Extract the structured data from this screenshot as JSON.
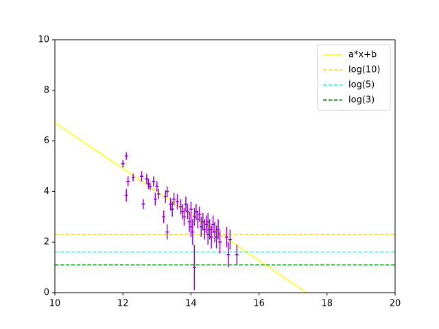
{
  "chart_data": {
    "type": "errorbar",
    "xlim": [
      10,
      20
    ],
    "xticks": [
      10,
      12,
      14,
      16,
      18,
      20
    ],
    "ylim": [
      0,
      10
    ],
    "yticks": [
      0,
      2,
      4,
      6,
      8,
      10
    ],
    "legend": "upper right",
    "series": [
      {
        "name": "a*x+b",
        "color": "#ffff00",
        "style": "solid",
        "x": [
          10,
          17.4
        ],
        "values": [
          6.72,
          0
        ]
      },
      {
        "name": "log(10)",
        "color": "#ffd700",
        "style": "dashed",
        "x": [
          10,
          20
        ],
        "values": [
          2.303,
          2.303
        ]
      },
      {
        "name": "log(5)",
        "color": "#00ffff",
        "style": "dashed",
        "x": [
          10,
          20
        ],
        "values": [
          1.609,
          1.609
        ]
      },
      {
        "name": "log(3)",
        "color": "#008000",
        "style": "dashed",
        "x": [
          10,
          20
        ],
        "values": [
          1.099,
          1.099
        ]
      }
    ],
    "points": {
      "color": "#9400d3",
      "xerr": 0.05,
      "x": [
        12.0,
        12.1,
        12.1,
        12.15,
        12.3,
        12.55,
        12.6,
        12.7,
        12.75,
        12.8,
        12.9,
        12.95,
        13.0,
        13.05,
        13.2,
        13.25,
        13.3,
        13.3,
        13.4,
        13.45,
        13.5,
        13.6,
        13.7,
        13.75,
        13.8,
        13.85,
        13.9,
        13.95,
        14.0,
        14.0,
        14.05,
        14.1,
        14.1,
        14.15,
        14.2,
        14.25,
        14.3,
        14.35,
        14.4,
        14.45,
        14.5,
        14.5,
        14.55,
        14.6,
        14.65,
        14.7,
        14.75,
        14.8,
        14.85,
        15.05,
        15.1,
        15.15,
        15.35
      ],
      "values": [
        5.1,
        5.4,
        3.85,
        4.4,
        4.55,
        4.6,
        3.5,
        4.5,
        4.3,
        4.2,
        4.4,
        3.7,
        4.2,
        3.9,
        3.0,
        3.8,
        2.4,
        4.0,
        3.5,
        3.3,
        3.7,
        3.6,
        3.4,
        3.2,
        3.0,
        3.5,
        3.2,
        2.8,
        3.3,
        2.6,
        2.4,
        1.0,
        3.0,
        3.2,
        2.9,
        3.1,
        2.6,
        2.8,
        2.5,
        2.7,
        2.3,
        2.8,
        2.5,
        2.2,
        2.7,
        2.4,
        2.2,
        2.5,
        2.0,
        2.2,
        1.5,
        2.1,
        1.5
      ],
      "yerr": [
        0.15,
        0.15,
        0.25,
        0.2,
        0.15,
        0.2,
        0.2,
        0.2,
        0.2,
        0.15,
        0.2,
        0.25,
        0.2,
        0.2,
        0.25,
        0.25,
        0.3,
        0.2,
        0.25,
        0.3,
        0.25,
        0.3,
        0.3,
        0.3,
        0.35,
        0.3,
        0.3,
        0.4,
        0.3,
        0.4,
        0.5,
        0.9,
        0.35,
        0.3,
        0.35,
        0.3,
        0.4,
        0.35,
        0.4,
        0.35,
        0.4,
        0.35,
        0.4,
        0.45,
        0.35,
        0.4,
        0.45,
        0.4,
        0.45,
        0.4,
        0.5,
        0.4,
        0.4
      ]
    }
  }
}
